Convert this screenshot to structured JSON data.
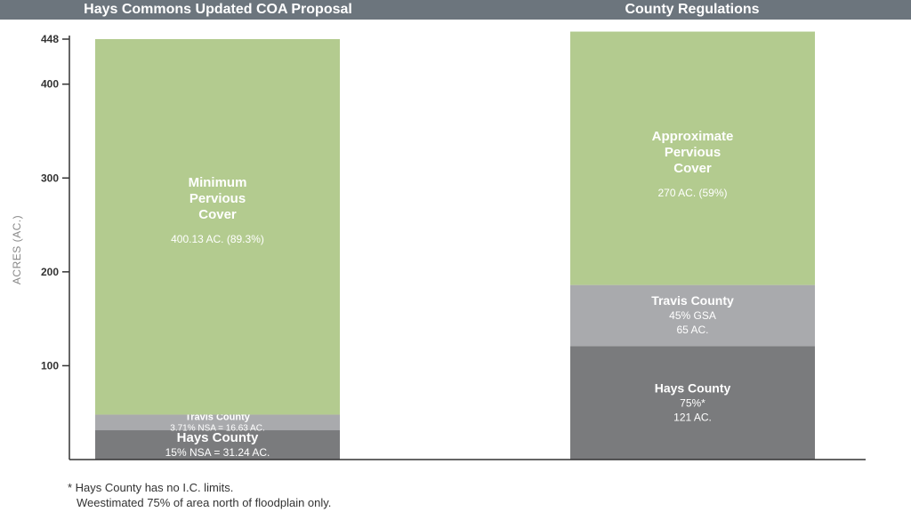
{
  "header": {
    "left_title": "Hays Commons Updated COA Proposal",
    "right_title": "County Regulations"
  },
  "footnote": {
    "line1": "* Hays County has no I.C. limits.",
    "line2": "Weestimated 75% of area north of floodplain only."
  },
  "colors": {
    "header_bg": "#6c757d",
    "pervious": "#b3cb8f",
    "travis": "#a9aaad",
    "hays": "#7a7b7d",
    "axis": "#333333"
  },
  "chart_data": {
    "type": "bar",
    "stacked": true,
    "ylabel": "ACRES (AC.)",
    "ylim": [
      0,
      448
    ],
    "yticks": [
      100,
      200,
      300,
      400,
      448
    ],
    "ytick_labels": [
      "100",
      "200",
      "300",
      "400",
      "448"
    ],
    "grid": false,
    "bars": [
      {
        "segments": [
          {
            "name": "hays",
            "value": 31.24,
            "label_lines": [
              "Hays County",
              "15% NSA = 31.24 AC."
            ]
          },
          {
            "name": "travis",
            "value": 16.63,
            "label_lines": [
              "Travis County",
              "3.71% NSA = 16.63 AC."
            ]
          },
          {
            "name": "pervious",
            "value": 400.13,
            "label_lines": [
              "Minimum",
              "Pervious",
              "Cover",
              "400.13 AC. (89.3%)"
            ]
          }
        ]
      },
      {
        "segments": [
          {
            "name": "hays",
            "value": 121,
            "label_lines": [
              "Hays County",
              "75%*",
              "121 AC."
            ]
          },
          {
            "name": "travis",
            "value": 65,
            "label_lines": [
              "Travis County",
              "45% GSA",
              "65 AC."
            ]
          },
          {
            "name": "pervious",
            "value": 270,
            "label_lines": [
              "Approximate",
              "Pervious",
              "Cover",
              "270 AC. (59%)"
            ]
          }
        ]
      }
    ]
  }
}
